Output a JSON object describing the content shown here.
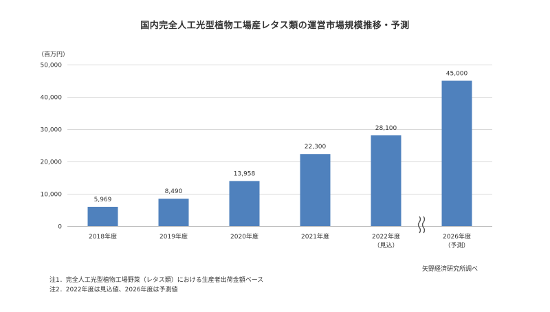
{
  "chart_data": {
    "type": "bar",
    "title": "国内完全人工光型植物工場産レタス類の運営市場規模推移・予測",
    "unit": "（百万円）",
    "categories": [
      {
        "label": "2018年度",
        "sub": ""
      },
      {
        "label": "2019年度",
        "sub": ""
      },
      {
        "label": "2020年度",
        "sub": ""
      },
      {
        "label": "2021年度",
        "sub": ""
      },
      {
        "label": "2022年度",
        "sub": "（見込）"
      },
      {
        "label": "2026年度",
        "sub": "（予測）"
      }
    ],
    "values": [
      5969,
      8490,
      13958,
      22300,
      28100,
      45000
    ],
    "value_labels": [
      "5,969",
      "8,490",
      "13,958",
      "22,300",
      "28,100",
      "45,000"
    ],
    "ylim": [
      0,
      50000
    ],
    "yticks": [
      {
        "value": 0,
        "label": "0"
      },
      {
        "value": 10000,
        "label": "10,000"
      },
      {
        "value": 20000,
        "label": "20,000"
      },
      {
        "value": 30000,
        "label": "30,000"
      },
      {
        "value": 40000,
        "label": "40,000"
      },
      {
        "value": 50000,
        "label": "50,000"
      }
    ],
    "grid": true,
    "axis_break_between": [
      4,
      5
    ],
    "bar_color": "#4f81bd",
    "grid_color": "#d9d9d9"
  },
  "notes": [
    "注1．完全人工光型植物工場野菜（レタス類）における生産者出荷金額ベース",
    "注2．2022年度は見込値、2026年度は予測値"
  ],
  "source": "矢野経済研究所調べ"
}
